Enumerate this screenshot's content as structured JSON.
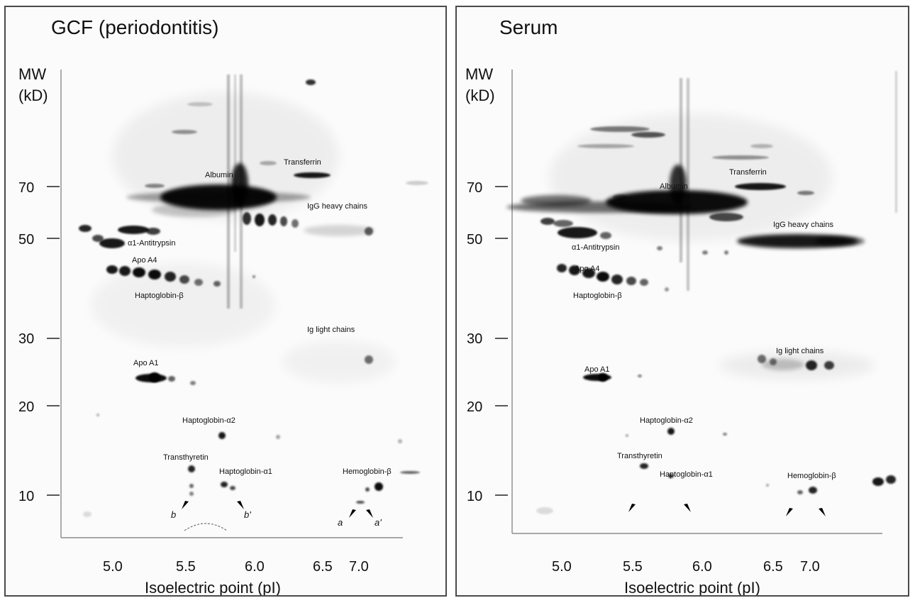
{
  "panels": [
    {
      "title": "GCF (periodontitis)",
      "y_title_1": "MW",
      "y_title_2": "(kD)",
      "x_title": "Isoelectric point (pI)",
      "mw_ticks": [
        "70",
        "50",
        "30",
        "20",
        "10"
      ],
      "pi_ticks": [
        "5.0",
        "5.5",
        "6.0",
        "6.5",
        "7.0"
      ],
      "labels": {
        "transferrin": "Transferrin",
        "albumin": "Albumin",
        "igg_heavy": "IgG heavy chains",
        "a1_antitrypsin": "α1-Antitrypsin",
        "apo_a4": "Apo A4",
        "haptoglobin_b": "Haptoglobin-β",
        "ig_light": "Ig light chains",
        "apo_a1": "Apo A1",
        "haptoglobin_a2": "Haptoglobin-α2",
        "transthyretin": "Transthyretin",
        "haptoglobin_a1": "Haptoglobin-α1",
        "hemoglobin_b": "Hemoglobin-β",
        "arrow_b": "b",
        "arrow_b_prime": "b'",
        "arrow_a": "a",
        "arrow_a_prime": "a'"
      }
    },
    {
      "title": "Serum",
      "y_title_1": "MW",
      "y_title_2": "(kD)",
      "x_title": "Isoelectric point (pI)",
      "mw_ticks": [
        "70",
        "50",
        "30",
        "20",
        "10"
      ],
      "pi_ticks": [
        "5.0",
        "5.5",
        "6.0",
        "6.5",
        "7.0"
      ],
      "labels": {
        "transferrin": "Transferrin",
        "albumin": "Albumin",
        "igg_heavy": "IgG heavy chains",
        "a1_antitrypsin": "α1-Antitrypsin",
        "apo_a4": "Apo A4",
        "haptoglobin_b": "Haptoglobin-β",
        "ig_light": "Ig light chains",
        "apo_a1": "Apo A1",
        "haptoglobin_a2": "Haptoglobin-α2",
        "transthyretin": "Transthyretin",
        "haptoglobin_a1": "Haptoglobin-α1",
        "hemoglobin_b": "Hemoglobin-β"
      }
    }
  ]
}
